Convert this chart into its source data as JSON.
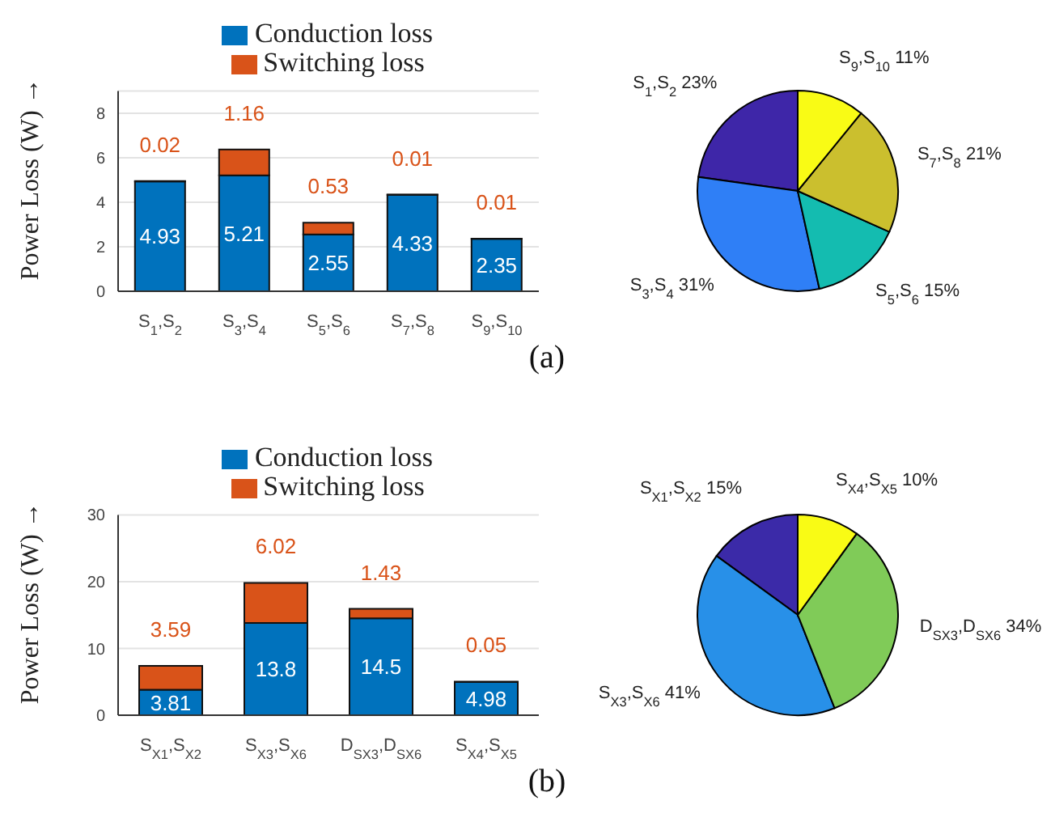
{
  "chart_data": [
    {
      "type": "bar",
      "stacked": true,
      "ylabel": "Power Loss (W) →",
      "categories": [
        "S$_{1}$,S$_{2}$",
        "S$_{3}$,S$_{4}$",
        "S$_{5}$,S$_{6}$",
        "S$_{7}$,S$_{8}$",
        "S$_{9}$,S$_{10}$"
      ],
      "series": [
        {
          "name": "Conduction loss",
          "color": "#0072bd",
          "values": [
            4.93,
            5.21,
            2.55,
            4.33,
            2.35
          ]
        },
        {
          "name": "Switching loss",
          "color": "#d95319",
          "values": [
            0.02,
            1.16,
            0.53,
            0.01,
            0.01
          ]
        }
      ],
      "ylim": [
        0,
        9
      ],
      "yticks": [
        0,
        2,
        4,
        6,
        8
      ],
      "grid": "y",
      "legend": "top",
      "data_labels": true,
      "annotations": [
        "(a)"
      ]
    },
    {
      "type": "pie",
      "categories": [
        "S$_{1}$,S$_{2}$",
        "S$_{3}$,S$_{4}$",
        "S$_{5}$,S$_{6}$",
        "S$_{7}$,S$_{8}$",
        "S$_{9}$,S$_{10}$"
      ],
      "values": [
        23,
        31,
        15,
        21,
        11
      ],
      "value_labels": [
        "23%",
        "31%",
        "15%",
        "21%",
        "11%"
      ],
      "colors": [
        "#3e26a8",
        "#2f7ff6",
        "#14bcb0",
        "#cbbf2e",
        "#f9fb15"
      ]
    },
    {
      "type": "bar",
      "stacked": true,
      "ylabel": "Power Loss (W) →",
      "categories": [
        "S$_{X1}$,S$_{X2}$",
        "S$_{X3}$,S$_{X6}$",
        "D$_{SX3}$,D$_{SX6}$",
        "S$_{X4}$,S$_{X5}$"
      ],
      "series": [
        {
          "name": "Conduction loss",
          "color": "#0072bd",
          "values": [
            3.81,
            13.8,
            14.5,
            4.98
          ]
        },
        {
          "name": "Switching loss",
          "color": "#d95319",
          "values": [
            3.59,
            6.02,
            1.43,
            0.05
          ]
        }
      ],
      "ylim": [
        0,
        30
      ],
      "yticks": [
        0,
        10,
        20,
        30
      ],
      "grid": "y",
      "legend": "top",
      "data_labels": true,
      "annotations": [
        "(b)"
      ]
    },
    {
      "type": "pie",
      "categories": [
        "S$_{X1}$,S$_{X2}$",
        "S$_{X3}$,S$_{X6}$",
        "D$_{SX3}$,D$_{SX6}$",
        "S$_{X4}$,S$_{X5}$"
      ],
      "values": [
        15,
        41,
        34,
        10
      ],
      "value_labels": [
        "15%",
        "41%",
        "34%",
        "10%"
      ],
      "colors": [
        "#3b2aa8",
        "#2890e8",
        "#80cb58",
        "#f9fb15"
      ]
    }
  ]
}
